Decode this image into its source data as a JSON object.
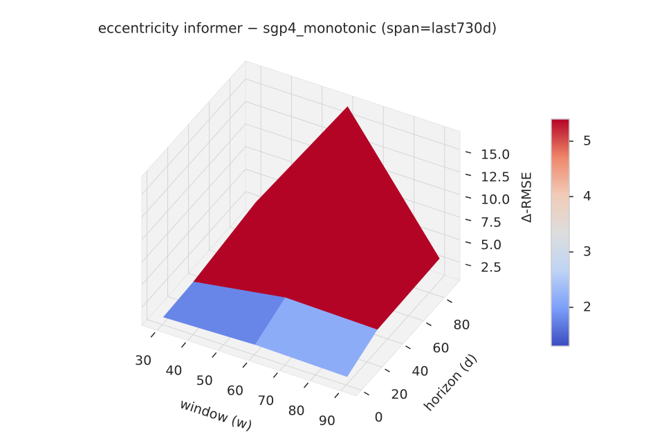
{
  "chart_data": {
    "type": "surface3d",
    "title": "eccentricity  informer − sgp4_monotonic  (span=last730d)",
    "xlabel": "window (w)",
    "ylabel": "horizon (d)",
    "zlabel": "Δ-RMSE",
    "x": [
      30,
      60,
      90
    ],
    "y": [
      1,
      30,
      90
    ],
    "z": [
      [
        1.2,
        1.5,
        1.3
      ],
      [
        1.4,
        3.0,
        2.8
      ],
      [
        2.5,
        16.5,
        3.0
      ]
    ],
    "xlim": [
      25,
      95
    ],
    "ylim": [
      -5,
      95
    ],
    "zlim": [
      0.5,
      17
    ],
    "xticks": [
      30,
      40,
      50,
      60,
      70,
      80,
      90
    ],
    "yticks": [
      0,
      20,
      40,
      60,
      80
    ],
    "zticks": [
      2.5,
      {
        "value": 5,
        "label": "5.0"
      },
      7.5,
      {
        "value": 10,
        "label": "10.0"
      },
      12.5,
      {
        "value": 15,
        "label": "15.0"
      }
    ],
    "colormap": "coolwarm",
    "clim": [
      1.3,
      5.4
    ],
    "cticks": [
      2,
      3,
      4,
      5
    ],
    "grid": true
  }
}
